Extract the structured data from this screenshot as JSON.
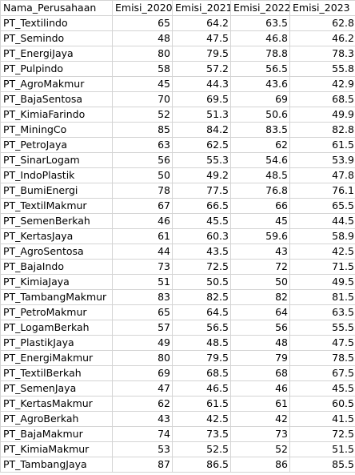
{
  "sheet": {
    "headers": [
      "Nama_Perusahaan",
      "Emisi_2020",
      "Emisi_2021",
      "Emisi_2022",
      "Emisi_2023"
    ],
    "rows": [
      [
        "PT_Textilindo",
        "65",
        "64.2",
        "63.5",
        "62.8"
      ],
      [
        "PT_Semindo",
        "48",
        "47.5",
        "46.8",
        "46.2"
      ],
      [
        "PT_EnergiJaya",
        "80",
        "79.5",
        "78.8",
        "78.3"
      ],
      [
        "PT_Pulpindo",
        "58",
        "57.2",
        "56.5",
        "55.8"
      ],
      [
        "PT_AgroMakmur",
        "45",
        "44.3",
        "43.6",
        "42.9"
      ],
      [
        "PT_BajaSentosa",
        "70",
        "69.5",
        "69",
        "68.5"
      ],
      [
        "PT_KimiaFarindo",
        "52",
        "51.3",
        "50.6",
        "49.9"
      ],
      [
        "PT_MiningCo",
        "85",
        "84.2",
        "83.5",
        "82.8"
      ],
      [
        "PT_PetroJaya",
        "63",
        "62.5",
        "62",
        "61.5"
      ],
      [
        "PT_SinarLogam",
        "56",
        "55.3",
        "54.6",
        "53.9"
      ],
      [
        "PT_IndoPlastik",
        "50",
        "49.2",
        "48.5",
        "47.8"
      ],
      [
        "PT_BumiEnergi",
        "78",
        "77.5",
        "76.8",
        "76.1"
      ],
      [
        "PT_TextilMakmur",
        "67",
        "66.5",
        "66",
        "65.5"
      ],
      [
        "PT_SemenBerkah",
        "46",
        "45.5",
        "45",
        "44.5"
      ],
      [
        "PT_KertasJaya",
        "61",
        "60.3",
        "59.6",
        "58.9"
      ],
      [
        "PT_AgroSentosa",
        "44",
        "43.5",
        "43",
        "42.5"
      ],
      [
        "PT_BajaIndo",
        "73",
        "72.5",
        "72",
        "71.5"
      ],
      [
        "PT_KimiaJaya",
        "51",
        "50.5",
        "50",
        "49.5"
      ],
      [
        "PT_TambangMakmur",
        "83",
        "82.5",
        "82",
        "81.5"
      ],
      [
        "PT_PetroMakmur",
        "65",
        "64.5",
        "64",
        "63.5"
      ],
      [
        "PT_LogamBerkah",
        "57",
        "56.5",
        "56",
        "55.5"
      ],
      [
        "PT_PlastikJaya",
        "49",
        "48.5",
        "48",
        "47.5"
      ],
      [
        "PT_EnergiMakmur",
        "80",
        "79.5",
        "79",
        "78.5"
      ],
      [
        "PT_TextilBerkah",
        "69",
        "68.5",
        "68",
        "67.5"
      ],
      [
        "PT_SemenJaya",
        "47",
        "46.5",
        "46",
        "45.5"
      ],
      [
        "PT_KertasMakmur",
        "62",
        "61.5",
        "61",
        "60.5"
      ],
      [
        "PT_AgroBerkah",
        "43",
        "42.5",
        "42",
        "41.5"
      ],
      [
        "PT_BajaMakmur",
        "74",
        "73.5",
        "73",
        "72.5"
      ],
      [
        "PT_KimiaMakmur",
        "53",
        "52.5",
        "52",
        "51.5"
      ],
      [
        "PT_TambangJaya",
        "87",
        "86.5",
        "86",
        "85.5"
      ]
    ]
  }
}
